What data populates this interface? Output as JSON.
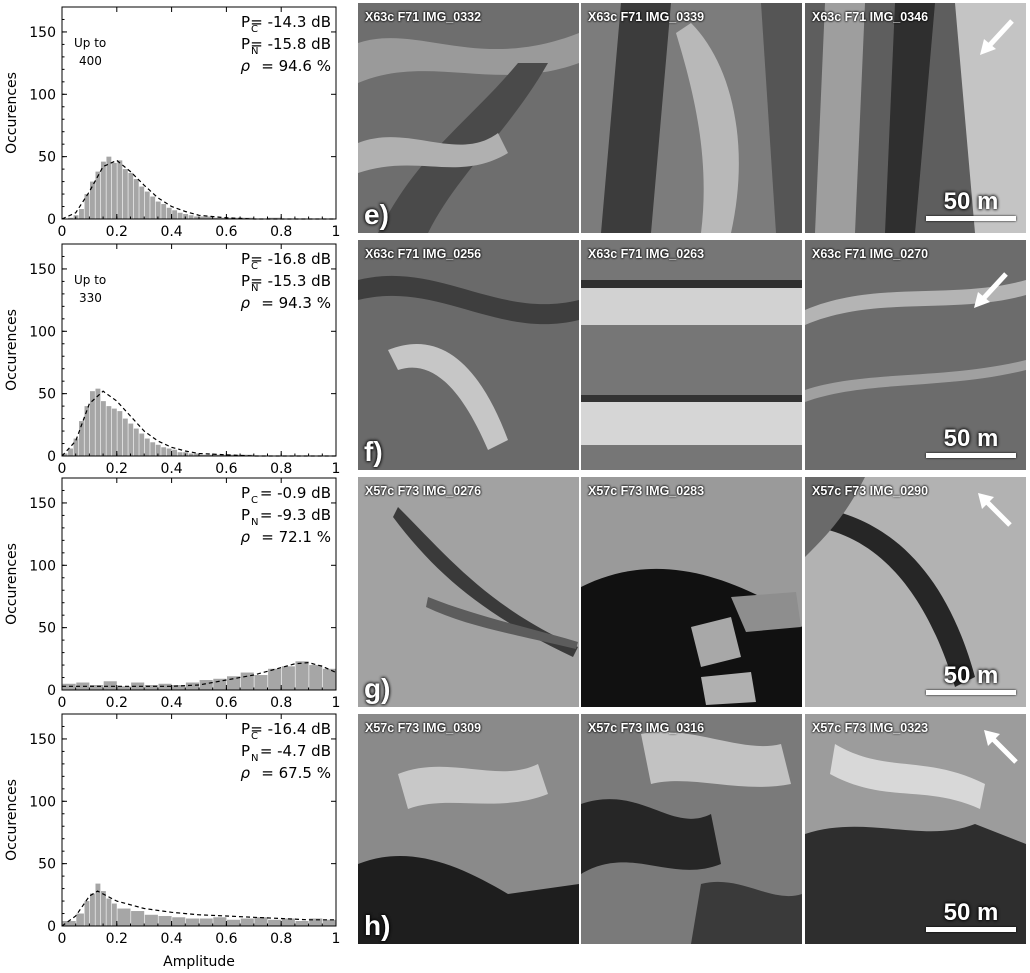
{
  "chart_data": [
    {
      "type": "bar",
      "panel_index": 0,
      "ylabel": "Occurences",
      "xlim": [
        0,
        1
      ],
      "ylim": [
        0,
        170
      ],
      "xticks": [
        "0",
        "0.2",
        "0.4",
        "0.6",
        "0.8",
        "1"
      ],
      "yticks": [
        "0",
        "50",
        "100",
        "150"
      ],
      "annotation": [
        "Up to",
        "400"
      ],
      "stats": [
        {
          "label": "P",
          "sub": "C",
          "value": "= -14.3 dB"
        },
        {
          "label": "P",
          "sub": "N",
          "value": "= -15.8 dB"
        },
        {
          "label": "ρ",
          "sub": "",
          "value": "= 94.6 %"
        }
      ],
      "fit_curve": {
        "style": "dashed",
        "x": [
          0.0,
          0.05,
          0.1,
          0.15,
          0.2,
          0.25,
          0.3,
          0.35,
          0.4,
          0.45,
          0.5,
          0.6,
          0.7,
          0.8,
          0.9,
          1.0
        ],
        "y": [
          0,
          5,
          22,
          42,
          47,
          38,
          27,
          17,
          10,
          6,
          3,
          1,
          0,
          0,
          0,
          0
        ]
      },
      "bins_x": [
        0.02,
        0.04,
        0.06,
        0.08,
        0.1,
        0.12,
        0.14,
        0.16,
        0.18,
        0.2,
        0.22,
        0.24,
        0.26,
        0.28,
        0.3,
        0.32,
        0.34,
        0.36,
        0.38,
        0.4,
        0.42,
        0.44,
        0.46,
        0.48,
        0.5,
        0.55,
        0.6,
        0.65,
        0.7,
        0.75,
        0.8,
        0.85,
        0.9,
        0.95,
        1.0
      ],
      "values": [
        0,
        1,
        3,
        8,
        20,
        30,
        38,
        46,
        50,
        45,
        47,
        40,
        37,
        32,
        26,
        22,
        18,
        14,
        12,
        9,
        7,
        5,
        4,
        3,
        2,
        2,
        1,
        1,
        1,
        0,
        1,
        0,
        0,
        0,
        0
      ]
    },
    {
      "type": "bar",
      "panel_index": 1,
      "ylabel": "Occurences",
      "xlim": [
        0,
        1
      ],
      "ylim": [
        0,
        170
      ],
      "xticks": [
        "0",
        "0.2",
        "0.4",
        "0.6",
        "0.8",
        "1"
      ],
      "yticks": [
        "0",
        "50",
        "100",
        "150"
      ],
      "annotation": [
        "Up to",
        "330"
      ],
      "stats": [
        {
          "label": "P",
          "sub": "C",
          "value": "= -16.8 dB"
        },
        {
          "label": "P",
          "sub": "N",
          "value": "= -15.3 dB"
        },
        {
          "label": "ρ",
          "sub": "",
          "value": "= 94.3 %"
        }
      ],
      "fit_curve": {
        "style": "dashed",
        "x": [
          0.0,
          0.05,
          0.1,
          0.15,
          0.2,
          0.25,
          0.3,
          0.35,
          0.4,
          0.45,
          0.5,
          0.6,
          0.7,
          0.8,
          0.9,
          1.0
        ],
        "y": [
          0,
          12,
          42,
          52,
          44,
          32,
          20,
          12,
          7,
          4,
          2,
          1,
          0,
          0,
          0,
          0
        ]
      },
      "bins_x": [
        0.02,
        0.04,
        0.06,
        0.08,
        0.1,
        0.12,
        0.14,
        0.16,
        0.18,
        0.2,
        0.22,
        0.24,
        0.26,
        0.28,
        0.3,
        0.32,
        0.34,
        0.36,
        0.38,
        0.4,
        0.42,
        0.44,
        0.46,
        0.48,
        0.5,
        0.55,
        0.6,
        0.65,
        0.7,
        0.75,
        0.8,
        0.85,
        0.9,
        0.95,
        1.0
      ],
      "values": [
        2,
        6,
        14,
        28,
        40,
        52,
        54,
        44,
        40,
        38,
        36,
        30,
        26,
        22,
        18,
        14,
        11,
        9,
        7,
        6,
        5,
        3,
        3,
        2,
        2,
        1,
        1,
        1,
        1,
        0,
        0,
        0,
        0,
        0,
        0
      ]
    },
    {
      "type": "bar",
      "panel_index": 2,
      "ylabel": "Occurences",
      "xlim": [
        0,
        1
      ],
      "ylim": [
        0,
        170
      ],
      "xticks": [
        "0",
        "0.2",
        "0.4",
        "0.6",
        "0.8",
        "1"
      ],
      "yticks": [
        "0",
        "50",
        "100",
        "150"
      ],
      "annotation": [],
      "stats": [
        {
          "label": "P",
          "sub": "C",
          "value": "= -0.9 dB"
        },
        {
          "label": "P",
          "sub": "N",
          "value": "= -9.3 dB"
        },
        {
          "label": "ρ",
          "sub": "",
          "value": "= 72.1 %"
        }
      ],
      "fit_curve": {
        "style": "dashed",
        "x": [
          0.0,
          0.1,
          0.2,
          0.3,
          0.4,
          0.5,
          0.6,
          0.7,
          0.8,
          0.85,
          0.9,
          0.95,
          1.0
        ],
        "y": [
          3,
          3,
          3,
          3,
          3,
          4,
          8,
          12,
          18,
          21,
          22,
          19,
          14
        ]
      },
      "bins_x": [
        0.05,
        0.1,
        0.15,
        0.2,
        0.25,
        0.3,
        0.35,
        0.4,
        0.45,
        0.5,
        0.55,
        0.6,
        0.65,
        0.7,
        0.75,
        0.8,
        0.85,
        0.9,
        0.95,
        1.0
      ],
      "values": [
        5,
        6,
        4,
        7,
        3,
        6,
        4,
        5,
        4,
        6,
        8,
        9,
        11,
        14,
        12,
        17,
        19,
        23,
        20,
        17
      ]
    },
    {
      "type": "bar",
      "panel_index": 3,
      "ylabel": "Occurences",
      "xlabel": "Amplitude",
      "xlim": [
        0,
        1
      ],
      "ylim": [
        0,
        170
      ],
      "xticks": [
        "0",
        "0.2",
        "0.4",
        "0.6",
        "0.8",
        "1"
      ],
      "yticks": [
        "0",
        "50",
        "100",
        "150"
      ],
      "annotation": [],
      "stats": [
        {
          "label": "P",
          "sub": "C",
          "value": "= -16.4 dB"
        },
        {
          "label": "P",
          "sub": "N",
          "value": "= -4.7 dB"
        },
        {
          "label": "ρ",
          "sub": "",
          "value": "= 67.5 %"
        }
      ],
      "fit_curve": {
        "style": "dashed",
        "x": [
          0.0,
          0.05,
          0.1,
          0.13,
          0.2,
          0.3,
          0.4,
          0.5,
          0.6,
          0.7,
          0.8,
          0.9,
          1.0
        ],
        "y": [
          0,
          8,
          24,
          28,
          20,
          14,
          11,
          9,
          8,
          7,
          6,
          5,
          5
        ]
      },
      "bins_x": [
        0.05,
        0.08,
        0.1,
        0.12,
        0.14,
        0.16,
        0.18,
        0.2,
        0.25,
        0.3,
        0.35,
        0.4,
        0.45,
        0.5,
        0.55,
        0.6,
        0.65,
        0.7,
        0.75,
        0.8,
        0.85,
        0.9,
        0.95,
        1.0
      ],
      "values": [
        4,
        10,
        20,
        26,
        34,
        28,
        22,
        18,
        14,
        12,
        9,
        8,
        7,
        6,
        6,
        7,
        5,
        6,
        7,
        5,
        6,
        4,
        6,
        5
      ]
    }
  ],
  "photo_rows": [
    {
      "letter": "e)",
      "scale": "50 m",
      "arrow": {
        "direction": "down-left"
      },
      "images": [
        {
          "label": "X63c F71 IMG_0332"
        },
        {
          "label": "X63c F71 IMG_0339"
        },
        {
          "label": "X63c F71 IMG_0346"
        }
      ]
    },
    {
      "letter": "f)",
      "scale": "50 m",
      "arrow": {
        "direction": "down-left"
      },
      "images": [
        {
          "label": "X63c F71 IMG_0256"
        },
        {
          "label": "X63c F71 IMG_0263"
        },
        {
          "label": "X63c F71 IMG_0270"
        }
      ]
    },
    {
      "letter": "g)",
      "scale": "50 m",
      "arrow": {
        "direction": "up-left"
      },
      "images": [
        {
          "label": "X57c F73 IMG_0276"
        },
        {
          "label": "X57c F73 IMG_0283"
        },
        {
          "label": "X57c F73 IMG_0290"
        }
      ]
    },
    {
      "letter": "h)",
      "scale": "50 m",
      "arrow": {
        "direction": "up-left"
      },
      "images": [
        {
          "label": "X57c F73 IMG_0309"
        },
        {
          "label": "X57c F73 IMG_0316"
        },
        {
          "label": "X57c F73 IMG_0323"
        }
      ]
    }
  ],
  "colors": {
    "bar": "#a6a6a6",
    "axis": "#000000",
    "curve": "#000000"
  }
}
